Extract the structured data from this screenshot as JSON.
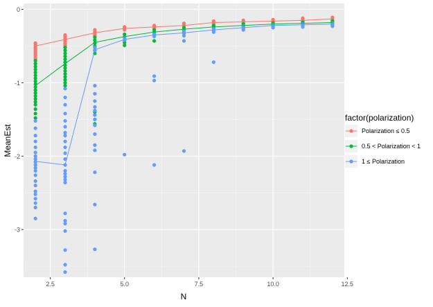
{
  "chart_data": {
    "type": "scatter",
    "xlabel": "N",
    "ylabel": "MeanEst",
    "xlim": [
      1.6,
      12.4
    ],
    "ylim": [
      -3.65,
      0.08
    ],
    "xticks": [
      2.5,
      5.0,
      7.5,
      10.0,
      12.5
    ],
    "xtick_labels": [
      "2.5",
      "5.0",
      "7.5",
      "10.0",
      "12.5"
    ],
    "yticks": [
      -3,
      -2,
      -1,
      0
    ],
    "ytick_labels": [
      "-3",
      "-2",
      "-1",
      "0"
    ],
    "grid": true,
    "legend": {
      "title": "factor(polarization)",
      "placement": "right",
      "entries": [
        "Polarization ≤ 0.5",
        "0.5 < Polarization < 1",
        "1 ≤ Polarization"
      ]
    },
    "series": [
      {
        "name": "Polarization ≤ 0.5",
        "color": "#F8766D",
        "line": [
          [
            2,
            -0.5
          ],
          [
            3,
            -0.41
          ],
          [
            4,
            -0.32
          ],
          [
            5,
            -0.26
          ],
          [
            6,
            -0.24
          ],
          [
            7,
            -0.22
          ],
          [
            8,
            -0.18
          ],
          [
            9,
            -0.17
          ],
          [
            10,
            -0.16
          ],
          [
            11,
            -0.15
          ],
          [
            12,
            -0.13
          ]
        ],
        "points": [
          [
            2,
            -0.46
          ],
          [
            2,
            -0.48
          ],
          [
            2,
            -0.5
          ],
          [
            2,
            -0.52
          ],
          [
            2,
            -0.54
          ],
          [
            2,
            -0.56
          ],
          [
            2,
            -0.58
          ],
          [
            2,
            -0.6
          ],
          [
            2,
            -0.62
          ],
          [
            2,
            -0.64
          ],
          [
            2,
            -0.66
          ],
          [
            2,
            -0.68
          ],
          [
            3,
            -0.35
          ],
          [
            3,
            -0.37
          ],
          [
            3,
            -0.39
          ],
          [
            3,
            -0.41
          ],
          [
            3,
            -0.43
          ],
          [
            3,
            -0.45
          ],
          [
            3,
            -0.47
          ],
          [
            3,
            -0.49
          ],
          [
            3,
            -0.51
          ],
          [
            4,
            -0.28
          ],
          [
            4,
            -0.3
          ],
          [
            4,
            -0.32
          ],
          [
            4,
            -0.34
          ],
          [
            4,
            -0.36
          ],
          [
            5,
            -0.24
          ],
          [
            5,
            -0.26
          ],
          [
            5,
            -0.28
          ],
          [
            6,
            -0.22
          ],
          [
            6,
            -0.24
          ],
          [
            6,
            -0.26
          ],
          [
            7,
            -0.19
          ],
          [
            7,
            -0.21
          ],
          [
            7,
            -0.23
          ],
          [
            8,
            -0.16
          ],
          [
            8,
            -0.18
          ],
          [
            8,
            -0.2
          ],
          [
            9,
            -0.15
          ],
          [
            9,
            -0.17
          ],
          [
            9,
            -0.19
          ],
          [
            10,
            -0.14
          ],
          [
            10,
            -0.16
          ],
          [
            10,
            -0.18
          ],
          [
            11,
            -0.12
          ],
          [
            11,
            -0.14
          ],
          [
            11,
            -0.16
          ],
          [
            12,
            -0.11
          ],
          [
            12,
            -0.13
          ],
          [
            12,
            -0.15
          ]
        ]
      },
      {
        "name": "0.5 < Polarization < 1",
        "color": "#00BA38",
        "line": [
          [
            2,
            -1.04
          ],
          [
            3,
            -0.74
          ],
          [
            4,
            -0.45
          ],
          [
            5,
            -0.37
          ],
          [
            6,
            -0.31
          ],
          [
            7,
            -0.27
          ],
          [
            8,
            -0.24
          ],
          [
            9,
            -0.22
          ],
          [
            10,
            -0.2
          ],
          [
            11,
            -0.19
          ],
          [
            12,
            -0.18
          ]
        ],
        "points": [
          [
            2,
            -0.7
          ],
          [
            2,
            -0.74
          ],
          [
            2,
            -0.78
          ],
          [
            2,
            -0.82
          ],
          [
            2,
            -0.86
          ],
          [
            2,
            -0.9
          ],
          [
            2,
            -0.94
          ],
          [
            2,
            -0.98
          ],
          [
            2,
            -1.02
          ],
          [
            2,
            -1.06
          ],
          [
            2,
            -1.1
          ],
          [
            2,
            -1.14
          ],
          [
            2,
            -1.18
          ],
          [
            2,
            -1.22
          ],
          [
            2,
            -1.26
          ],
          [
            2,
            -1.3
          ],
          [
            2,
            -1.36
          ],
          [
            2,
            -1.42
          ],
          [
            2,
            -1.48
          ],
          [
            3,
            -0.52
          ],
          [
            3,
            -0.56
          ],
          [
            3,
            -0.6
          ],
          [
            3,
            -0.64
          ],
          [
            3,
            -0.68
          ],
          [
            3,
            -0.72
          ],
          [
            3,
            -0.76
          ],
          [
            3,
            -0.8
          ],
          [
            3,
            -0.84
          ],
          [
            3,
            -0.88
          ],
          [
            3,
            -0.92
          ],
          [
            3,
            -0.96
          ],
          [
            3,
            -1.0
          ],
          [
            3,
            -1.04
          ],
          [
            4,
            -0.38
          ],
          [
            4,
            -0.42
          ],
          [
            4,
            -0.46
          ],
          [
            4,
            -0.5
          ],
          [
            4,
            -0.56
          ],
          [
            4,
            -0.6
          ],
          [
            4,
            -1.4
          ],
          [
            4,
            -1.5
          ],
          [
            4,
            -1.56
          ],
          [
            5,
            -0.34
          ],
          [
            5,
            -0.38
          ],
          [
            5,
            -0.42
          ],
          [
            5,
            -0.45
          ],
          [
            5,
            -0.49
          ],
          [
            6,
            -0.28
          ],
          [
            6,
            -0.31
          ],
          [
            6,
            -0.34
          ],
          [
            6,
            -0.43
          ],
          [
            7,
            -0.25
          ],
          [
            7,
            -0.28
          ],
          [
            7,
            -0.31
          ],
          [
            8,
            -0.22
          ],
          [
            8,
            -0.24
          ],
          [
            8,
            -0.26
          ],
          [
            9,
            -0.2
          ],
          [
            9,
            -0.22
          ],
          [
            9,
            -0.24
          ],
          [
            10,
            -0.18
          ],
          [
            10,
            -0.2
          ],
          [
            10,
            -0.22
          ],
          [
            11,
            -0.17
          ],
          [
            11,
            -0.19
          ],
          [
            11,
            -0.21
          ],
          [
            12,
            -0.16
          ],
          [
            12,
            -0.18
          ],
          [
            12,
            -0.2
          ]
        ]
      },
      {
        "name": "1 ≤ Polarization",
        "color": "#619CFF",
        "line": [
          [
            2,
            -2.07
          ],
          [
            3,
            -2.12
          ],
          [
            4,
            -0.55
          ],
          [
            5,
            -0.41
          ],
          [
            6,
            -0.35
          ],
          [
            7,
            -0.32
          ],
          [
            8,
            -0.28
          ],
          [
            9,
            -0.25
          ],
          [
            10,
            -0.22
          ],
          [
            11,
            -0.21
          ],
          [
            12,
            -0.2
          ]
        ],
        "points": [
          [
            2,
            -1.52
          ],
          [
            2,
            -1.62
          ],
          [
            2,
            -1.72
          ],
          [
            2,
            -1.8
          ],
          [
            2,
            -1.88
          ],
          [
            2,
            -1.95
          ],
          [
            2,
            -2.0
          ],
          [
            2,
            -2.04
          ],
          [
            2,
            -2.08
          ],
          [
            2,
            -2.12
          ],
          [
            2,
            -2.16
          ],
          [
            2,
            -2.2
          ],
          [
            2,
            -2.26
          ],
          [
            2,
            -2.34
          ],
          [
            2,
            -2.4
          ],
          [
            2,
            -2.48
          ],
          [
            2,
            -2.52
          ],
          [
            2,
            -2.58
          ],
          [
            2,
            -2.64
          ],
          [
            2,
            -2.7
          ],
          [
            2,
            -2.85
          ],
          [
            3,
            -1.08
          ],
          [
            3,
            -1.2
          ],
          [
            3,
            -1.3
          ],
          [
            3,
            -1.42
          ],
          [
            3,
            -1.52
          ],
          [
            3,
            -1.6
          ],
          [
            3,
            -1.68
          ],
          [
            3,
            -1.72
          ],
          [
            3,
            -1.8
          ],
          [
            3,
            -1.88
          ],
          [
            3,
            -1.96
          ],
          [
            3,
            -2.04
          ],
          [
            3,
            -2.12
          ],
          [
            3,
            -2.2
          ],
          [
            3,
            -2.24
          ],
          [
            3,
            -2.28
          ],
          [
            3,
            -2.32
          ],
          [
            3,
            -2.36
          ],
          [
            3,
            -2.78
          ],
          [
            3,
            -2.88
          ],
          [
            3,
            -2.92
          ],
          [
            3,
            -3.02
          ],
          [
            3,
            -3.28
          ],
          [
            3,
            -3.48
          ],
          [
            3,
            -3.58
          ],
          [
            4,
            -0.52
          ],
          [
            4,
            -0.56
          ],
          [
            4,
            -1.04
          ],
          [
            4,
            -1.15
          ],
          [
            4,
            -1.25
          ],
          [
            4,
            -1.33
          ],
          [
            4,
            -1.38
          ],
          [
            4,
            -1.44
          ],
          [
            4,
            -1.5
          ],
          [
            4,
            -1.58
          ],
          [
            4,
            -1.7
          ],
          [
            4,
            -1.85
          ],
          [
            4,
            -1.92
          ],
          [
            4,
            -2.22
          ],
          [
            4,
            -2.66
          ],
          [
            4,
            -3.27
          ],
          [
            5,
            -0.39
          ],
          [
            5,
            -0.42
          ],
          [
            5,
            -1.98
          ],
          [
            6,
            -0.34
          ],
          [
            6,
            -0.37
          ],
          [
            6,
            -0.91
          ],
          [
            6,
            -0.97
          ],
          [
            6,
            -2.12
          ],
          [
            7,
            -0.3
          ],
          [
            7,
            -0.33
          ],
          [
            7,
            -0.36
          ],
          [
            7,
            -0.43
          ],
          [
            7,
            -1.93
          ],
          [
            8,
            -0.26
          ],
          [
            8,
            -0.29
          ],
          [
            8,
            -0.31
          ],
          [
            8,
            -0.72
          ],
          [
            9,
            -0.23
          ],
          [
            9,
            -0.26
          ],
          [
            9,
            -0.28
          ],
          [
            10,
            -0.21
          ],
          [
            10,
            -0.23
          ],
          [
            10,
            -0.25
          ],
          [
            11,
            -0.2
          ],
          [
            11,
            -0.22
          ],
          [
            11,
            -0.24
          ],
          [
            12,
            -0.19
          ],
          [
            12,
            -0.21
          ],
          [
            12,
            -0.23
          ]
        ]
      }
    ]
  }
}
